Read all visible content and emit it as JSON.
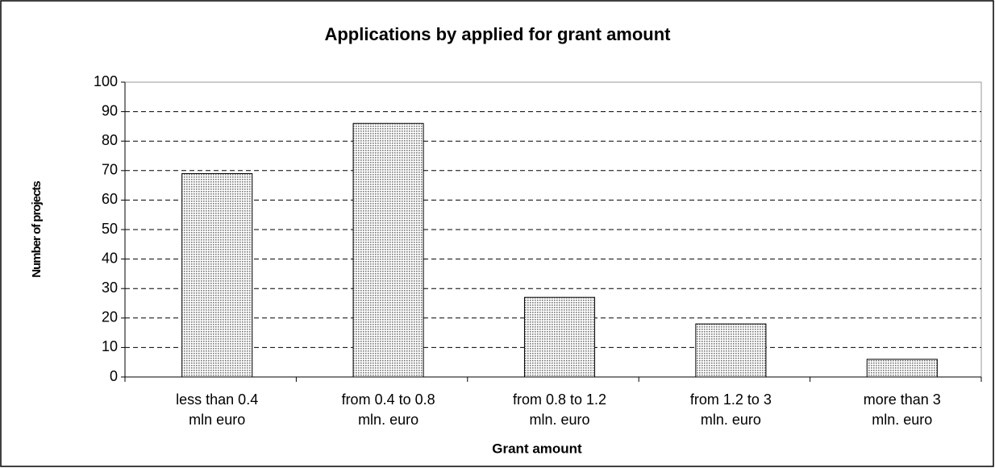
{
  "chart_data": {
    "type": "bar",
    "title": "Applications by applied for grant amount",
    "x_label": "Grant amount",
    "y_label": "Number of projects",
    "categories": [
      "less than 0.4\nmln euro",
      "from 0.4 to 0.8\nmln. euro",
      "from 0.8 to 1.2\nmln. euro",
      "from 1.2 to 3\nmln. euro",
      "more than 3\nmln. euro"
    ],
    "values": [
      69,
      86,
      27,
      18,
      6
    ],
    "color": "#c8c8c8",
    "ylim": [
      0,
      100
    ],
    "yticks": [
      0,
      10,
      20,
      30,
      40,
      50,
      60,
      70,
      80,
      90,
      100
    ],
    "grid": true
  }
}
